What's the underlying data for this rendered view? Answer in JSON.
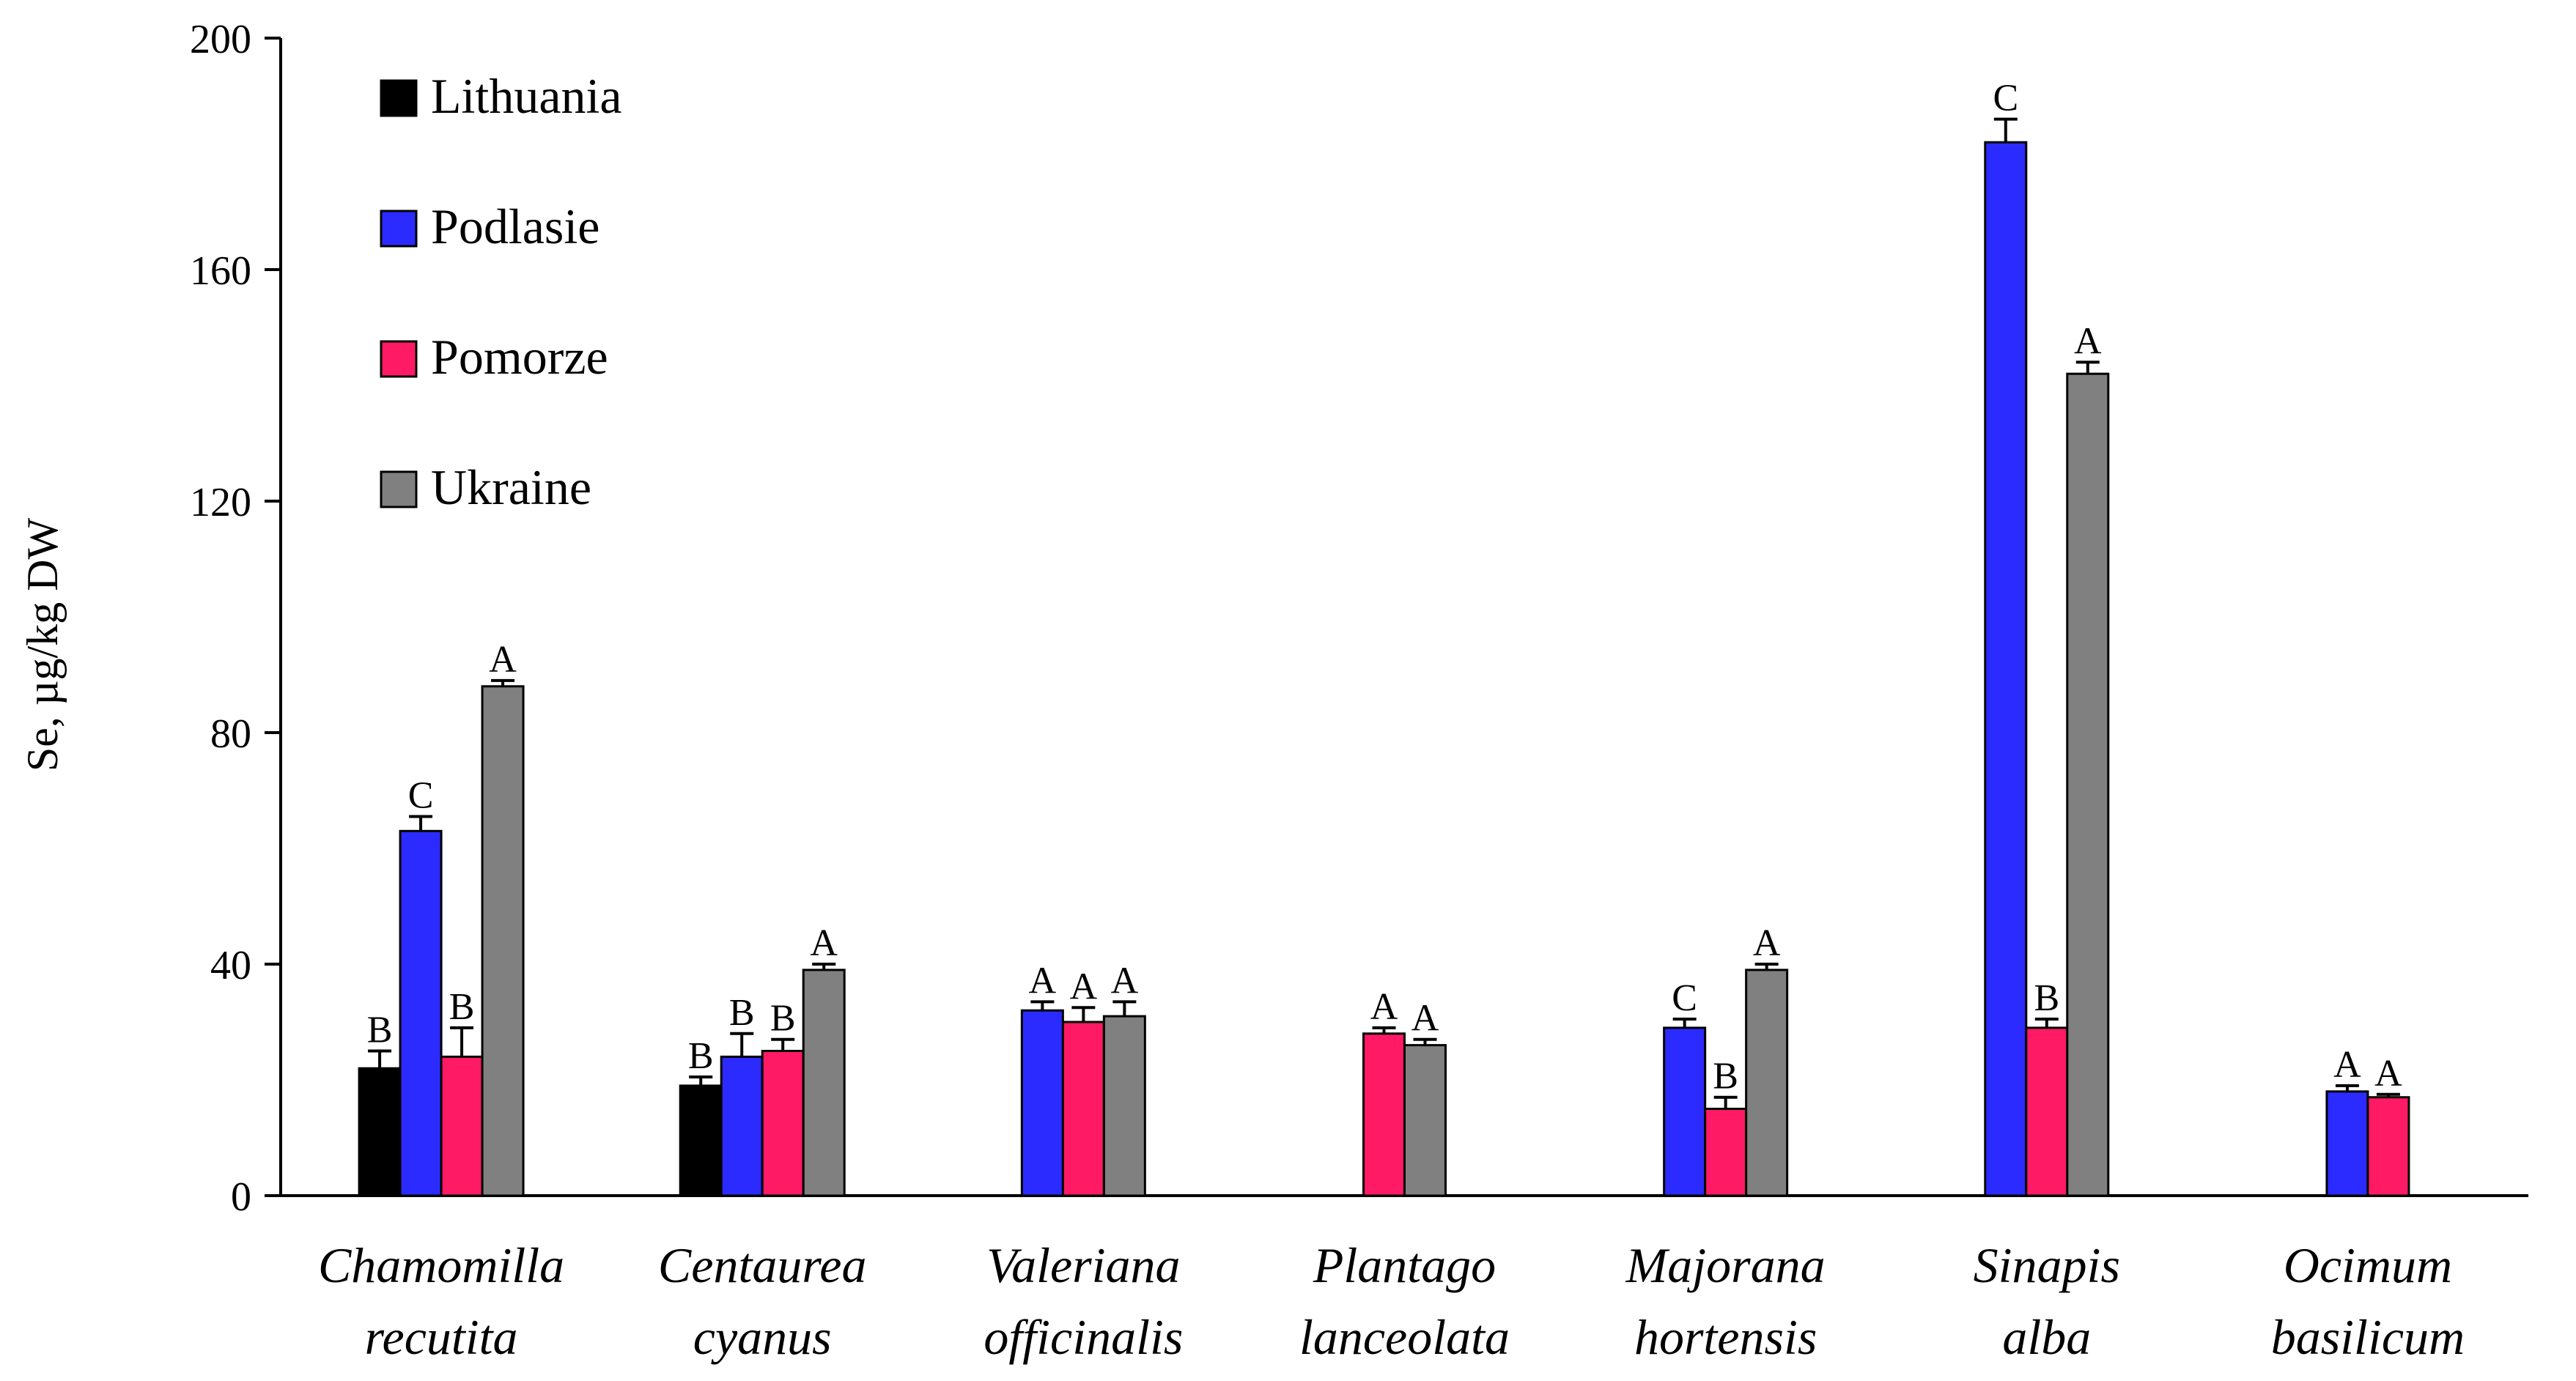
{
  "chart_data": {
    "type": "bar",
    "title": "",
    "xlabel": "",
    "ylabel": "Se, µg/kg DW",
    "ylim": [
      0,
      200
    ],
    "yticks": [
      0,
      40,
      80,
      120,
      160,
      200
    ],
    "grid": false,
    "legend_position": "top-left",
    "categories": [
      [
        "Chamomilla",
        "recutita"
      ],
      [
        "Centaurea",
        "cyanus"
      ],
      [
        "Valeriana",
        "officinalis"
      ],
      [
        "Plantago",
        "lanceolata"
      ],
      [
        "Majorana",
        "hortensis"
      ],
      [
        "Sinapis",
        "alba"
      ],
      [
        "Ocimum",
        "basilicum"
      ]
    ],
    "series": [
      {
        "name": "Lithuania",
        "color": "#000000",
        "values": [
          22,
          19,
          null,
          null,
          null,
          null,
          null
        ],
        "errors": [
          3,
          1.5,
          null,
          null,
          null,
          null,
          null
        ],
        "labels": [
          "B",
          "B",
          null,
          null,
          null,
          null,
          null
        ]
      },
      {
        "name": "Podlasie",
        "color": "#2b2bff",
        "values": [
          63,
          24,
          32,
          null,
          29,
          182,
          18
        ],
        "errors": [
          2.5,
          4,
          1.5,
          null,
          1.5,
          4,
          1
        ],
        "labels": [
          "C",
          "B",
          "A",
          null,
          "C",
          "C",
          "A"
        ]
      },
      {
        "name": "Pomorze",
        "color": "#ff1a66",
        "values": [
          24,
          25,
          30,
          28,
          15,
          29,
          17
        ],
        "errors": [
          5,
          2,
          2.5,
          1,
          2,
          1.5,
          0.5
        ],
        "labels": [
          "B",
          "B",
          "A",
          "A",
          "B",
          "B",
          "A"
        ]
      },
      {
        "name": "Ukraine",
        "color": "#808080",
        "values": [
          88,
          39,
          31,
          26,
          39,
          142,
          null
        ],
        "errors": [
          1,
          1,
          2.5,
          1,
          1,
          2,
          null
        ],
        "labels": [
          "A",
          "A",
          "A",
          "A",
          "A",
          "A",
          null
        ]
      }
    ]
  }
}
